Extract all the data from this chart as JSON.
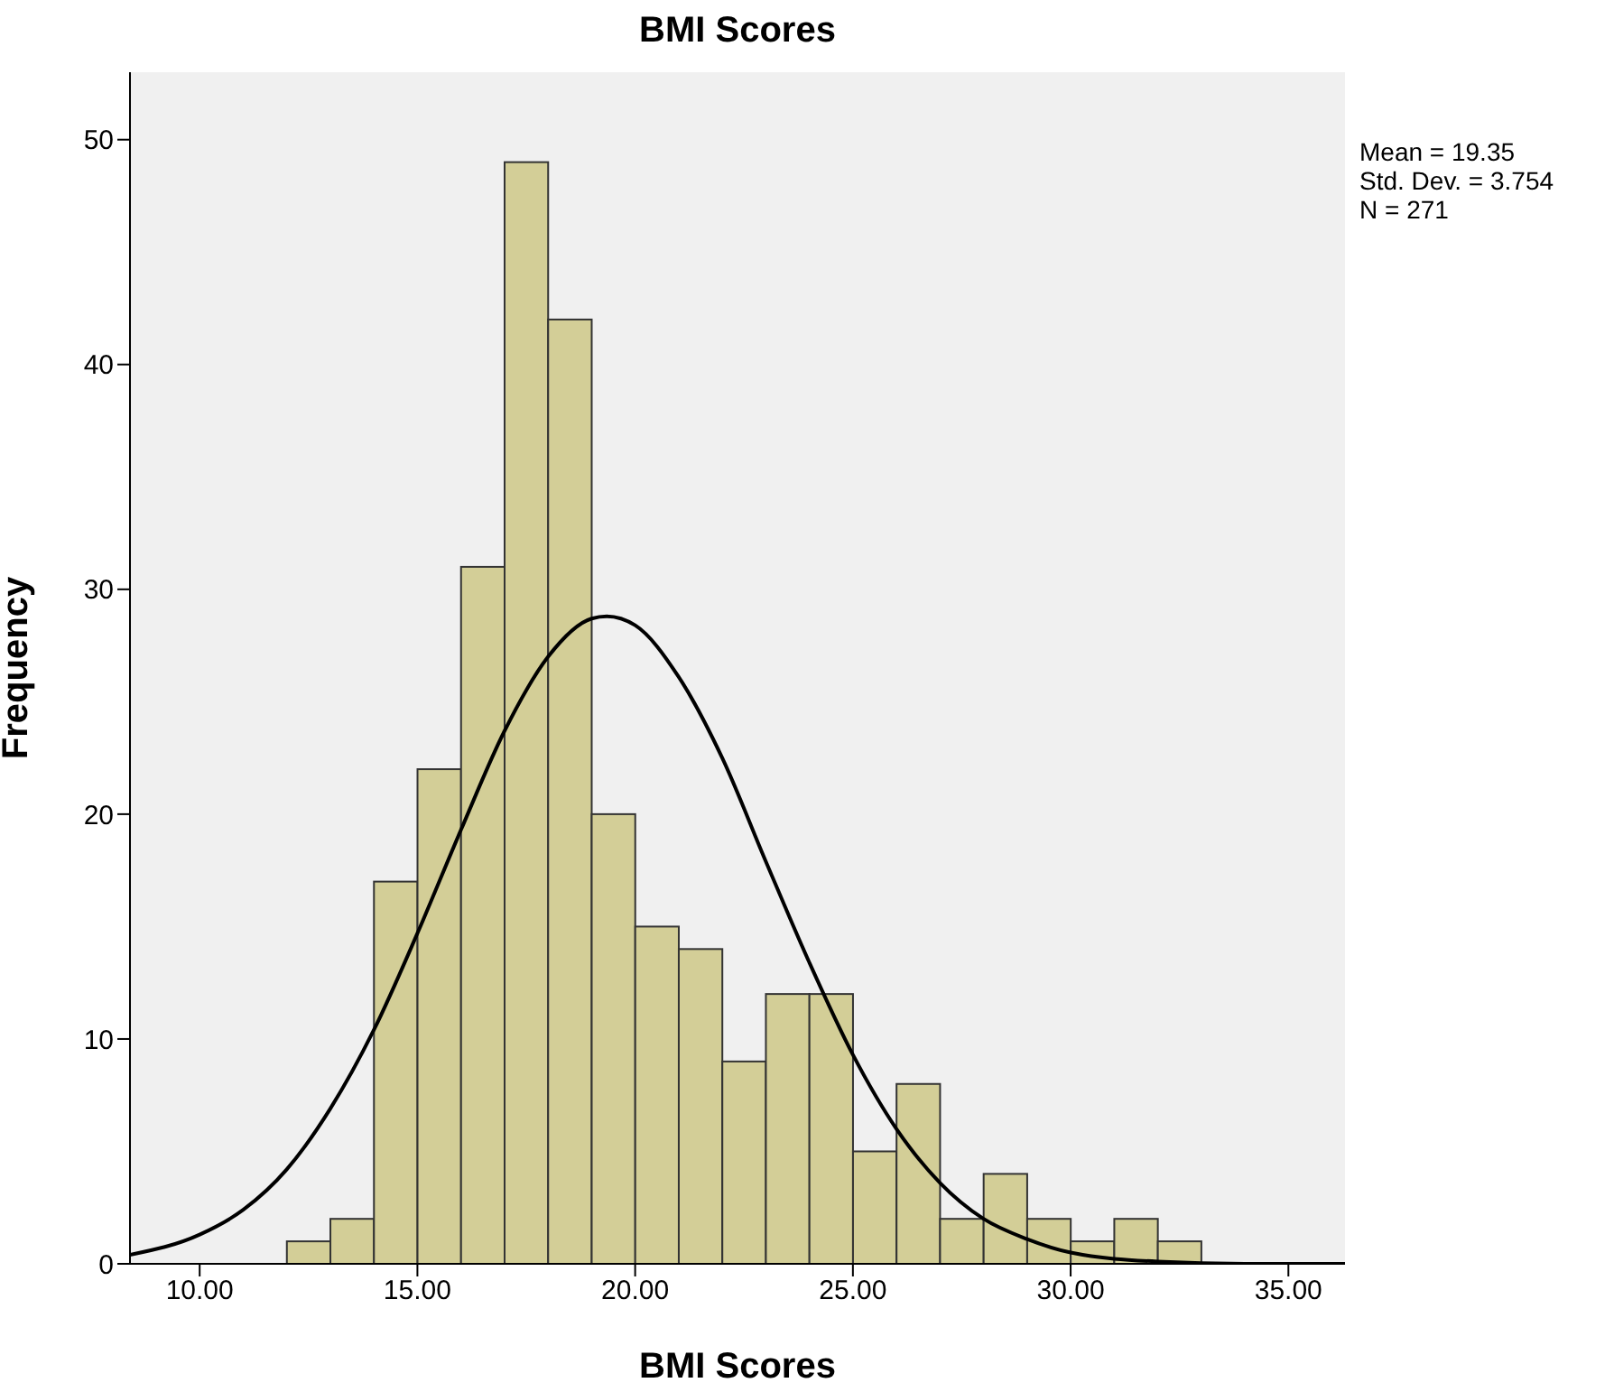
{
  "chart_data": {
    "type": "histogram",
    "title": "BMI Scores",
    "xlabel": "BMI Scores",
    "ylabel": "Frequency",
    "bins": [
      12,
      13,
      14,
      15,
      16,
      17,
      18,
      19,
      20,
      21,
      22,
      23,
      24,
      25,
      26,
      27,
      28,
      29,
      30,
      31,
      32,
      33
    ],
    "values": [
      1,
      2,
      17,
      22,
      31,
      49,
      42,
      20,
      15,
      14,
      9,
      12,
      12,
      5,
      8,
      2,
      4,
      2,
      1,
      2,
      1
    ],
    "color": "#d3ce97",
    "series": [
      {
        "type": "line",
        "color": "#000000",
        "x": [
          8.4,
          10,
          11,
          12,
          13,
          14,
          15,
          16,
          17,
          18,
          19,
          19.35,
          20,
          21,
          22,
          23,
          24,
          25,
          26,
          27,
          28,
          29,
          30,
          32,
          34,
          36.3
        ],
        "values": [
          0.4,
          1.3,
          2.4,
          4.2,
          6.9,
          10.4,
          14.7,
          19.3,
          23.7,
          27.0,
          28.7,
          28.8,
          28.4,
          26.1,
          22.5,
          17.9,
          13.4,
          9.3,
          6.0,
          3.6,
          2.0,
          1.1,
          0.5,
          0.1,
          0.0,
          0.0
        ]
      }
    ],
    "xlim": [
      8.4,
      36.3
    ],
    "xticks": [
      {
        "value": 10,
        "label": "10.00"
      },
      {
        "value": 15,
        "label": "15.00"
      },
      {
        "value": 20,
        "label": "20.00"
      },
      {
        "value": 25,
        "label": "25.00"
      },
      {
        "value": 30,
        "label": "30.00"
      },
      {
        "value": 35,
        "label": "35.00"
      }
    ],
    "ylim": [
      0,
      53
    ],
    "yticks": [
      0,
      10,
      20,
      30,
      40,
      50
    ],
    "annotations": [
      "Mean = 19.35",
      "Std. Dev. = 3.754",
      "N = 271"
    ]
  }
}
